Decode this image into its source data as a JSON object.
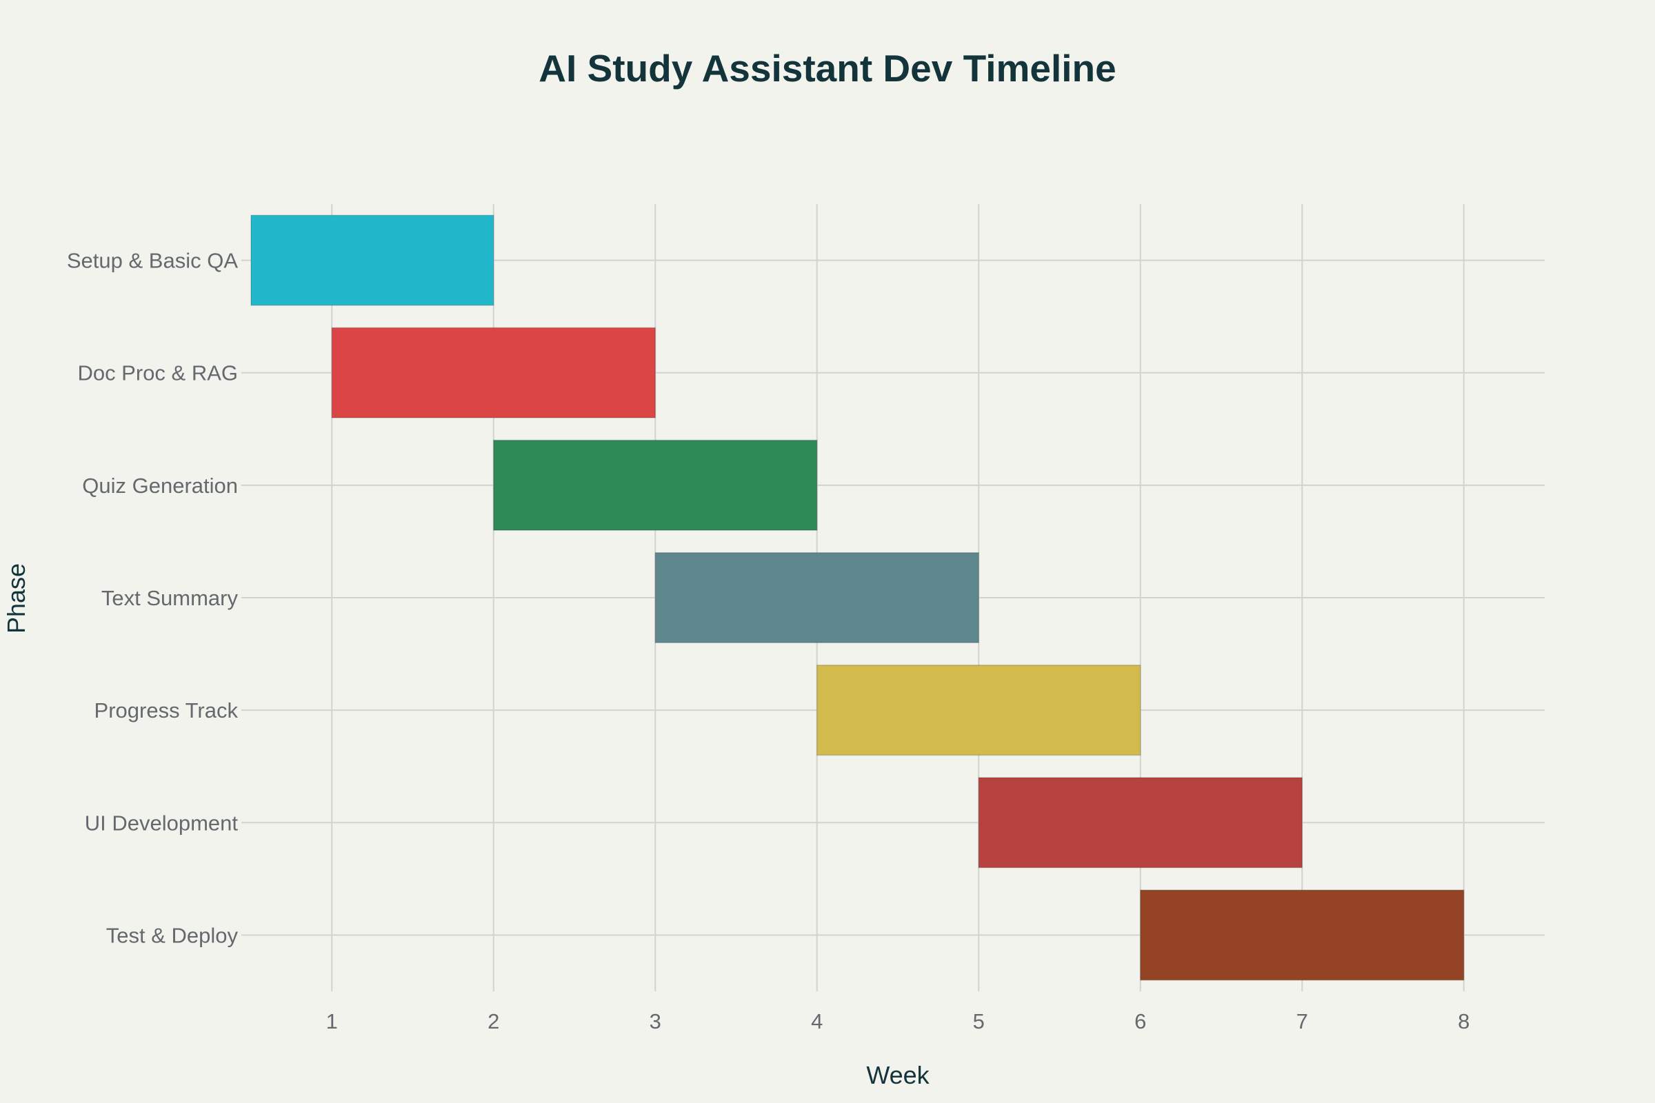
{
  "chart_data": {
    "type": "bar",
    "orientation": "horizontal",
    "title": "AI Study Assistant Dev Timeline",
    "xlabel": "Week",
    "ylabel": "Phase",
    "xlim": [
      0.5,
      8.5
    ],
    "xticks": [
      1,
      2,
      3,
      4,
      5,
      6,
      7,
      8
    ],
    "grid": true,
    "tasks": [
      {
        "label": "Setup & Basic QA",
        "start": 0.5,
        "end": 2,
        "color": "#21b8cc"
      },
      {
        "label": "Doc Proc & RAG",
        "start": 1,
        "end": 3,
        "color": "#db4545"
      },
      {
        "label": "Quiz Generation",
        "start": 2,
        "end": 4,
        "color": "#2e8a57"
      },
      {
        "label": "Text Summary",
        "start": 3,
        "end": 5,
        "color": "#5e888d"
      },
      {
        "label": "Progress Track",
        "start": 4,
        "end": 6,
        "color": "#d2ba4c"
      },
      {
        "label": "UI Development",
        "start": 5,
        "end": 7,
        "color": "#b6413e"
      },
      {
        "label": "Test & Deploy",
        "start": 6,
        "end": 8,
        "color": "#944425"
      }
    ]
  }
}
